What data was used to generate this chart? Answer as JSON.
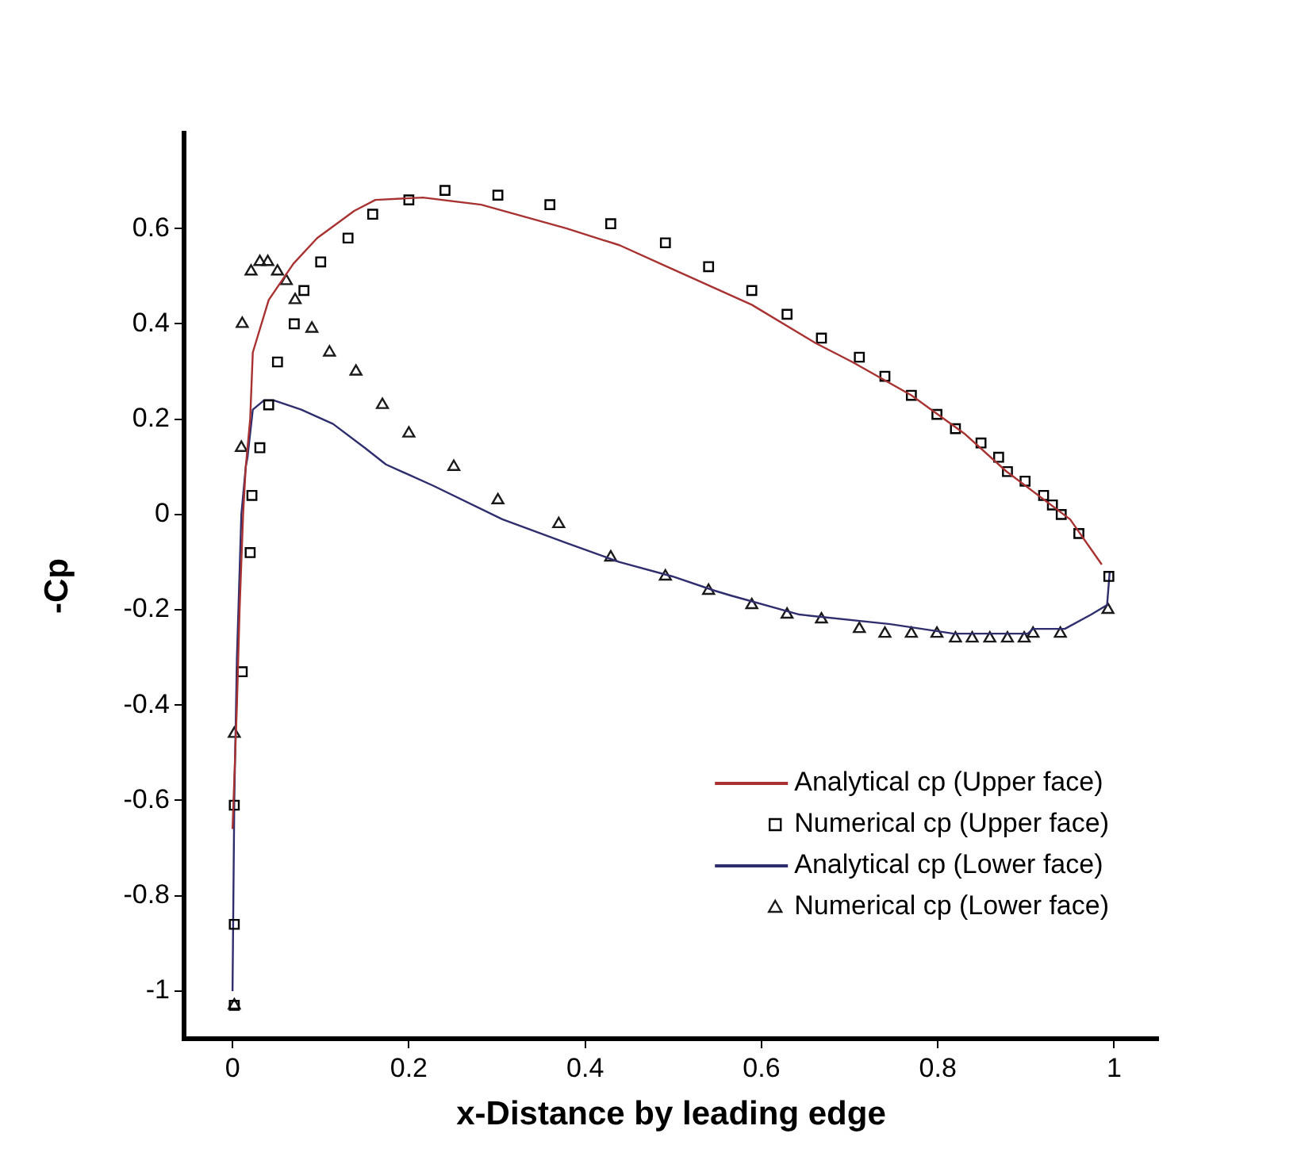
{
  "chart_data": {
    "type": "line",
    "xlabel": "x-Distance by leading edge",
    "ylabel": "-Cp",
    "xlim": [
      -0.055,
      1.05
    ],
    "ylim": [
      -1.1,
      0.8
    ],
    "xticks": [
      0,
      0.2,
      0.4,
      0.6,
      0.8,
      1
    ],
    "yticks": [
      -1,
      -0.8,
      -0.6,
      -0.4,
      -0.2,
      0,
      0.2,
      0.4,
      0.6
    ],
    "grid": false,
    "legend": "bottom right",
    "line_style": "solid",
    "series": [
      {
        "name": "Analytical cp (Upper face)",
        "type": "line",
        "marker": "none",
        "color": "#a83232",
        "x": [
          0,
          0.005,
          0.008,
          0.012,
          0.015,
          0.02,
          0.023,
          0.041,
          0.069,
          0.096,
          0.138,
          0.162,
          0.216,
          0.282,
          0.379,
          0.439,
          0.493,
          0.529,
          0.589,
          0.661,
          0.703,
          0.77,
          0.83,
          0.878,
          0.95,
          0.986
        ],
        "values": [
          -0.66,
          -0.4,
          -0.2,
          0,
          0.1,
          0.2,
          0.34,
          0.45,
          0.526,
          0.58,
          0.637,
          0.66,
          0.665,
          0.65,
          0.6,
          0.565,
          0.52,
          0.49,
          0.44,
          0.36,
          0.32,
          0.25,
          0.17,
          0.09,
          -0.01,
          -0.105
        ]
      },
      {
        "name": "Numerical cp (Upper face)",
        "type": "scatter",
        "marker": "square",
        "color": "#000000",
        "x": [
          0.002,
          0.002,
          0.002,
          0.011,
          0.02,
          0.022,
          0.031,
          0.041,
          0.051,
          0.07,
          0.081,
          0.1,
          0.131,
          0.159,
          0.2,
          0.241,
          0.301,
          0.36,
          0.429,
          0.491,
          0.54,
          0.589,
          0.629,
          0.668,
          0.711,
          0.74,
          0.77,
          0.799,
          0.82,
          0.849,
          0.869,
          0.879,
          0.899,
          0.92,
          0.93,
          0.94,
          0.96,
          0.994
        ],
        "values": [
          -1.03,
          -0.86,
          -0.61,
          -0.33,
          -0.08,
          0.04,
          0.14,
          0.23,
          0.32,
          0.4,
          0.47,
          0.53,
          0.58,
          0.63,
          0.66,
          0.68,
          0.67,
          0.65,
          0.61,
          0.57,
          0.52,
          0.47,
          0.42,
          0.37,
          0.33,
          0.29,
          0.25,
          0.21,
          0.18,
          0.15,
          0.12,
          0.09,
          0.07,
          0.04,
          0.02,
          0,
          -0.04,
          -0.13
        ]
      },
      {
        "name": "Analytical cp (Lower face)",
        "type": "line",
        "marker": "none",
        "color": "#2e2e6e",
        "x": [
          0,
          0.002,
          0.005,
          0.01,
          0.015,
          0.017,
          0.023,
          0.036,
          0.046,
          0.078,
          0.114,
          0.15,
          0.174,
          0.228,
          0.306,
          0.379,
          0.439,
          0.499,
          0.547,
          0.565,
          0.643,
          0.746,
          0.818,
          0.902,
          0.908,
          0.944,
          0.974,
          0.992,
          0.995
        ],
        "values": [
          -1.0,
          -0.6,
          -0.3,
          0,
          0.1,
          0.12,
          0.22,
          0.24,
          0.24,
          0.22,
          0.19,
          0.14,
          0.105,
          0.06,
          -0.01,
          -0.06,
          -0.1,
          -0.13,
          -0.16,
          -0.17,
          -0.21,
          -0.23,
          -0.25,
          -0.25,
          -0.24,
          -0.24,
          -0.21,
          -0.19,
          -0.12
        ]
      },
      {
        "name": "Numerical cp (Lower face)",
        "type": "scatter",
        "marker": "triangle",
        "color": "#1a1a1a",
        "x": [
          0.002,
          0.002,
          0.01,
          0.011,
          0.021,
          0.031,
          0.04,
          0.051,
          0.061,
          0.071,
          0.09,
          0.11,
          0.14,
          0.17,
          0.2,
          0.251,
          0.301,
          0.37,
          0.429,
          0.491,
          0.54,
          0.589,
          0.629,
          0.668,
          0.711,
          0.74,
          0.77,
          0.799,
          0.82,
          0.839,
          0.859,
          0.879,
          0.898,
          0.908,
          0.939,
          0.993
        ],
        "values": [
          -1.03,
          -0.46,
          0.14,
          0.4,
          0.51,
          0.53,
          0.53,
          0.51,
          0.49,
          0.45,
          0.39,
          0.34,
          0.3,
          0.23,
          0.17,
          0.1,
          0.03,
          -0.02,
          -0.09,
          -0.13,
          -0.16,
          -0.19,
          -0.21,
          -0.22,
          -0.24,
          -0.25,
          -0.25,
          -0.25,
          -0.26,
          -0.26,
          -0.26,
          -0.26,
          -0.26,
          -0.25,
          -0.25,
          -0.2
        ]
      }
    ]
  }
}
